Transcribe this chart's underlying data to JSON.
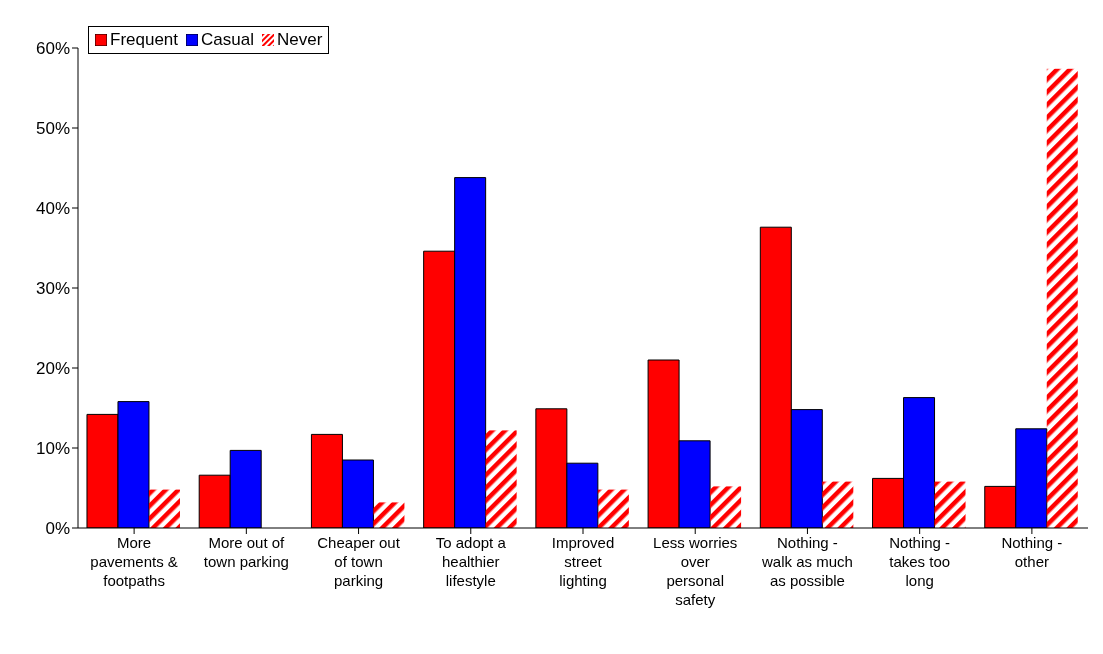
{
  "chart_data": {
    "type": "bar",
    "categories": [
      "More pavements & footpaths",
      "More out of town parking",
      "Cheaper out of town parking",
      "To adopt a healthier lifestyle",
      "Improved street lighting",
      "Less worries over personal safety",
      "Nothing - walk as much as possible",
      "Nothing - takes too long",
      "Nothing - other"
    ],
    "series": [
      {
        "name": "Frequent",
        "color": "#ff0000",
        "values": [
          14.2,
          6.6,
          11.7,
          34.6,
          14.9,
          21.0,
          37.6,
          6.2,
          5.2
        ]
      },
      {
        "name": "Casual",
        "color": "#0000ff",
        "values": [
          15.8,
          9.7,
          8.5,
          43.8,
          8.1,
          10.9,
          14.8,
          16.3,
          12.4
        ]
      },
      {
        "name": "Never",
        "color": "#ff0000",
        "values": [
          4.8,
          0,
          3.2,
          12.2,
          4.8,
          5.2,
          5.8,
          5.8,
          57.4
        ]
      }
    ],
    "ylim": [
      0,
      60
    ],
    "yticks": [
      {
        "value": 0,
        "label": "0%"
      },
      {
        "value": 10,
        "label": "10%"
      },
      {
        "value": 20,
        "label": "20%"
      },
      {
        "value": 30,
        "label": "30%"
      },
      {
        "value": 40,
        "label": "40%"
      },
      {
        "value": 50,
        "label": "50%"
      },
      {
        "value": 60,
        "label": "60%"
      }
    ],
    "grid": false,
    "legend": "top left"
  }
}
